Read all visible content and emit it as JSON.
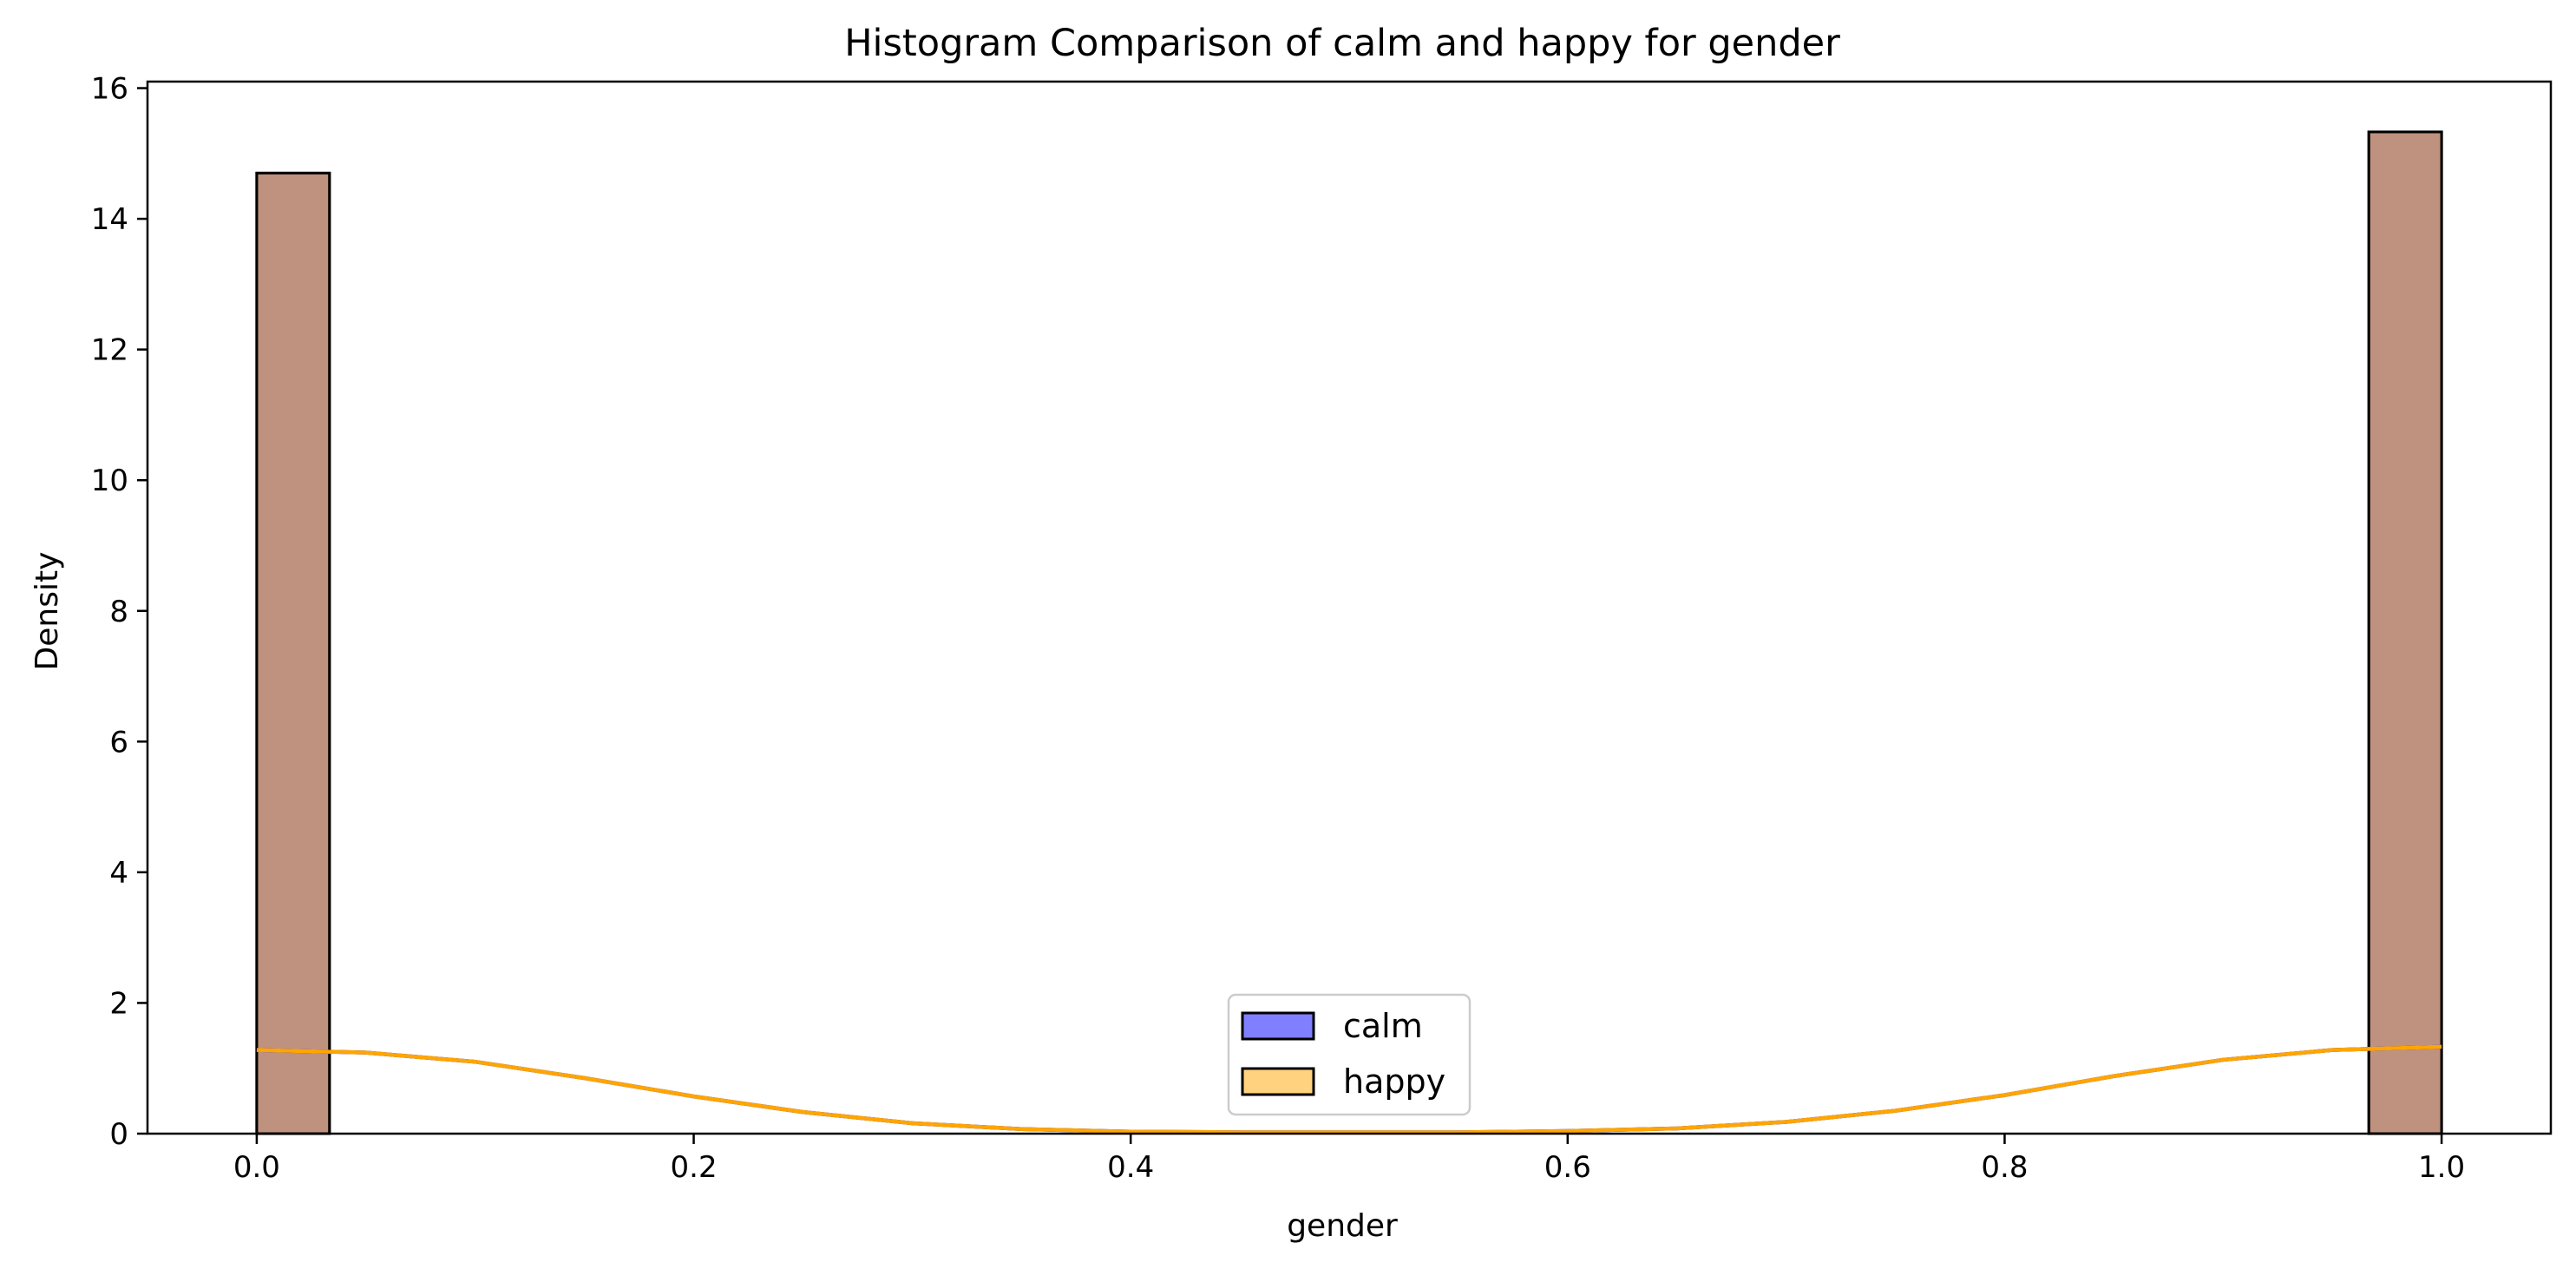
{
  "chart_data": {
    "type": "bar",
    "title": "Histogram Comparison of calm and happy for gender",
    "xlabel": "gender",
    "ylabel": "Density",
    "xlim": [
      -0.05,
      1.05
    ],
    "ylim": [
      0,
      16.1
    ],
    "xticks": [
      "0.0",
      "0.2",
      "0.4",
      "0.6",
      "0.8",
      "1.0"
    ],
    "xtick_values": [
      0,
      0.2,
      0.4,
      0.6,
      0.8,
      1.0
    ],
    "yticks": [
      "0",
      "2",
      "4",
      "6",
      "8",
      "10",
      "12",
      "14",
      "16"
    ],
    "ytick_values": [
      0,
      2,
      4,
      6,
      8,
      10,
      12,
      14,
      16
    ],
    "grid": false,
    "legend_position": "lower center",
    "series": [
      {
        "name": "calm",
        "color": "#0000ff",
        "fill_opacity": 0.5,
        "bins": [
          {
            "x0": 0.0,
            "x1": 0.0333,
            "value": 14.7
          },
          {
            "x0": 0.9667,
            "x1": 1.0,
            "value": 15.33
          }
        ],
        "kde": {
          "x": [
            0,
            0.05,
            0.1,
            0.15,
            0.2,
            0.25,
            0.3,
            0.35,
            0.4,
            0.45,
            0.5,
            0.55,
            0.6,
            0.65,
            0.7,
            0.75,
            0.8,
            0.85,
            0.9,
            0.95,
            1.0
          ],
          "y": [
            1.28,
            1.24,
            1.1,
            0.85,
            0.57,
            0.33,
            0.16,
            0.07,
            0.03,
            0.02,
            0.02,
            0.02,
            0.04,
            0.08,
            0.18,
            0.35,
            0.59,
            0.88,
            1.13,
            1.28,
            1.33
          ]
        }
      },
      {
        "name": "happy",
        "color": "#ffa500",
        "fill_opacity": 0.5,
        "bins": [
          {
            "x0": 0.0,
            "x1": 0.0333,
            "value": 14.7
          },
          {
            "x0": 0.9667,
            "x1": 1.0,
            "value": 15.33
          }
        ],
        "kde": {
          "x": [
            0,
            0.05,
            0.1,
            0.15,
            0.2,
            0.25,
            0.3,
            0.35,
            0.4,
            0.45,
            0.5,
            0.55,
            0.6,
            0.65,
            0.7,
            0.75,
            0.8,
            0.85,
            0.9,
            0.95,
            1.0
          ],
          "y": [
            1.28,
            1.24,
            1.1,
            0.85,
            0.57,
            0.33,
            0.16,
            0.07,
            0.03,
            0.02,
            0.02,
            0.02,
            0.04,
            0.08,
            0.18,
            0.35,
            0.59,
            0.88,
            1.13,
            1.28,
            1.33
          ]
        }
      }
    ]
  }
}
